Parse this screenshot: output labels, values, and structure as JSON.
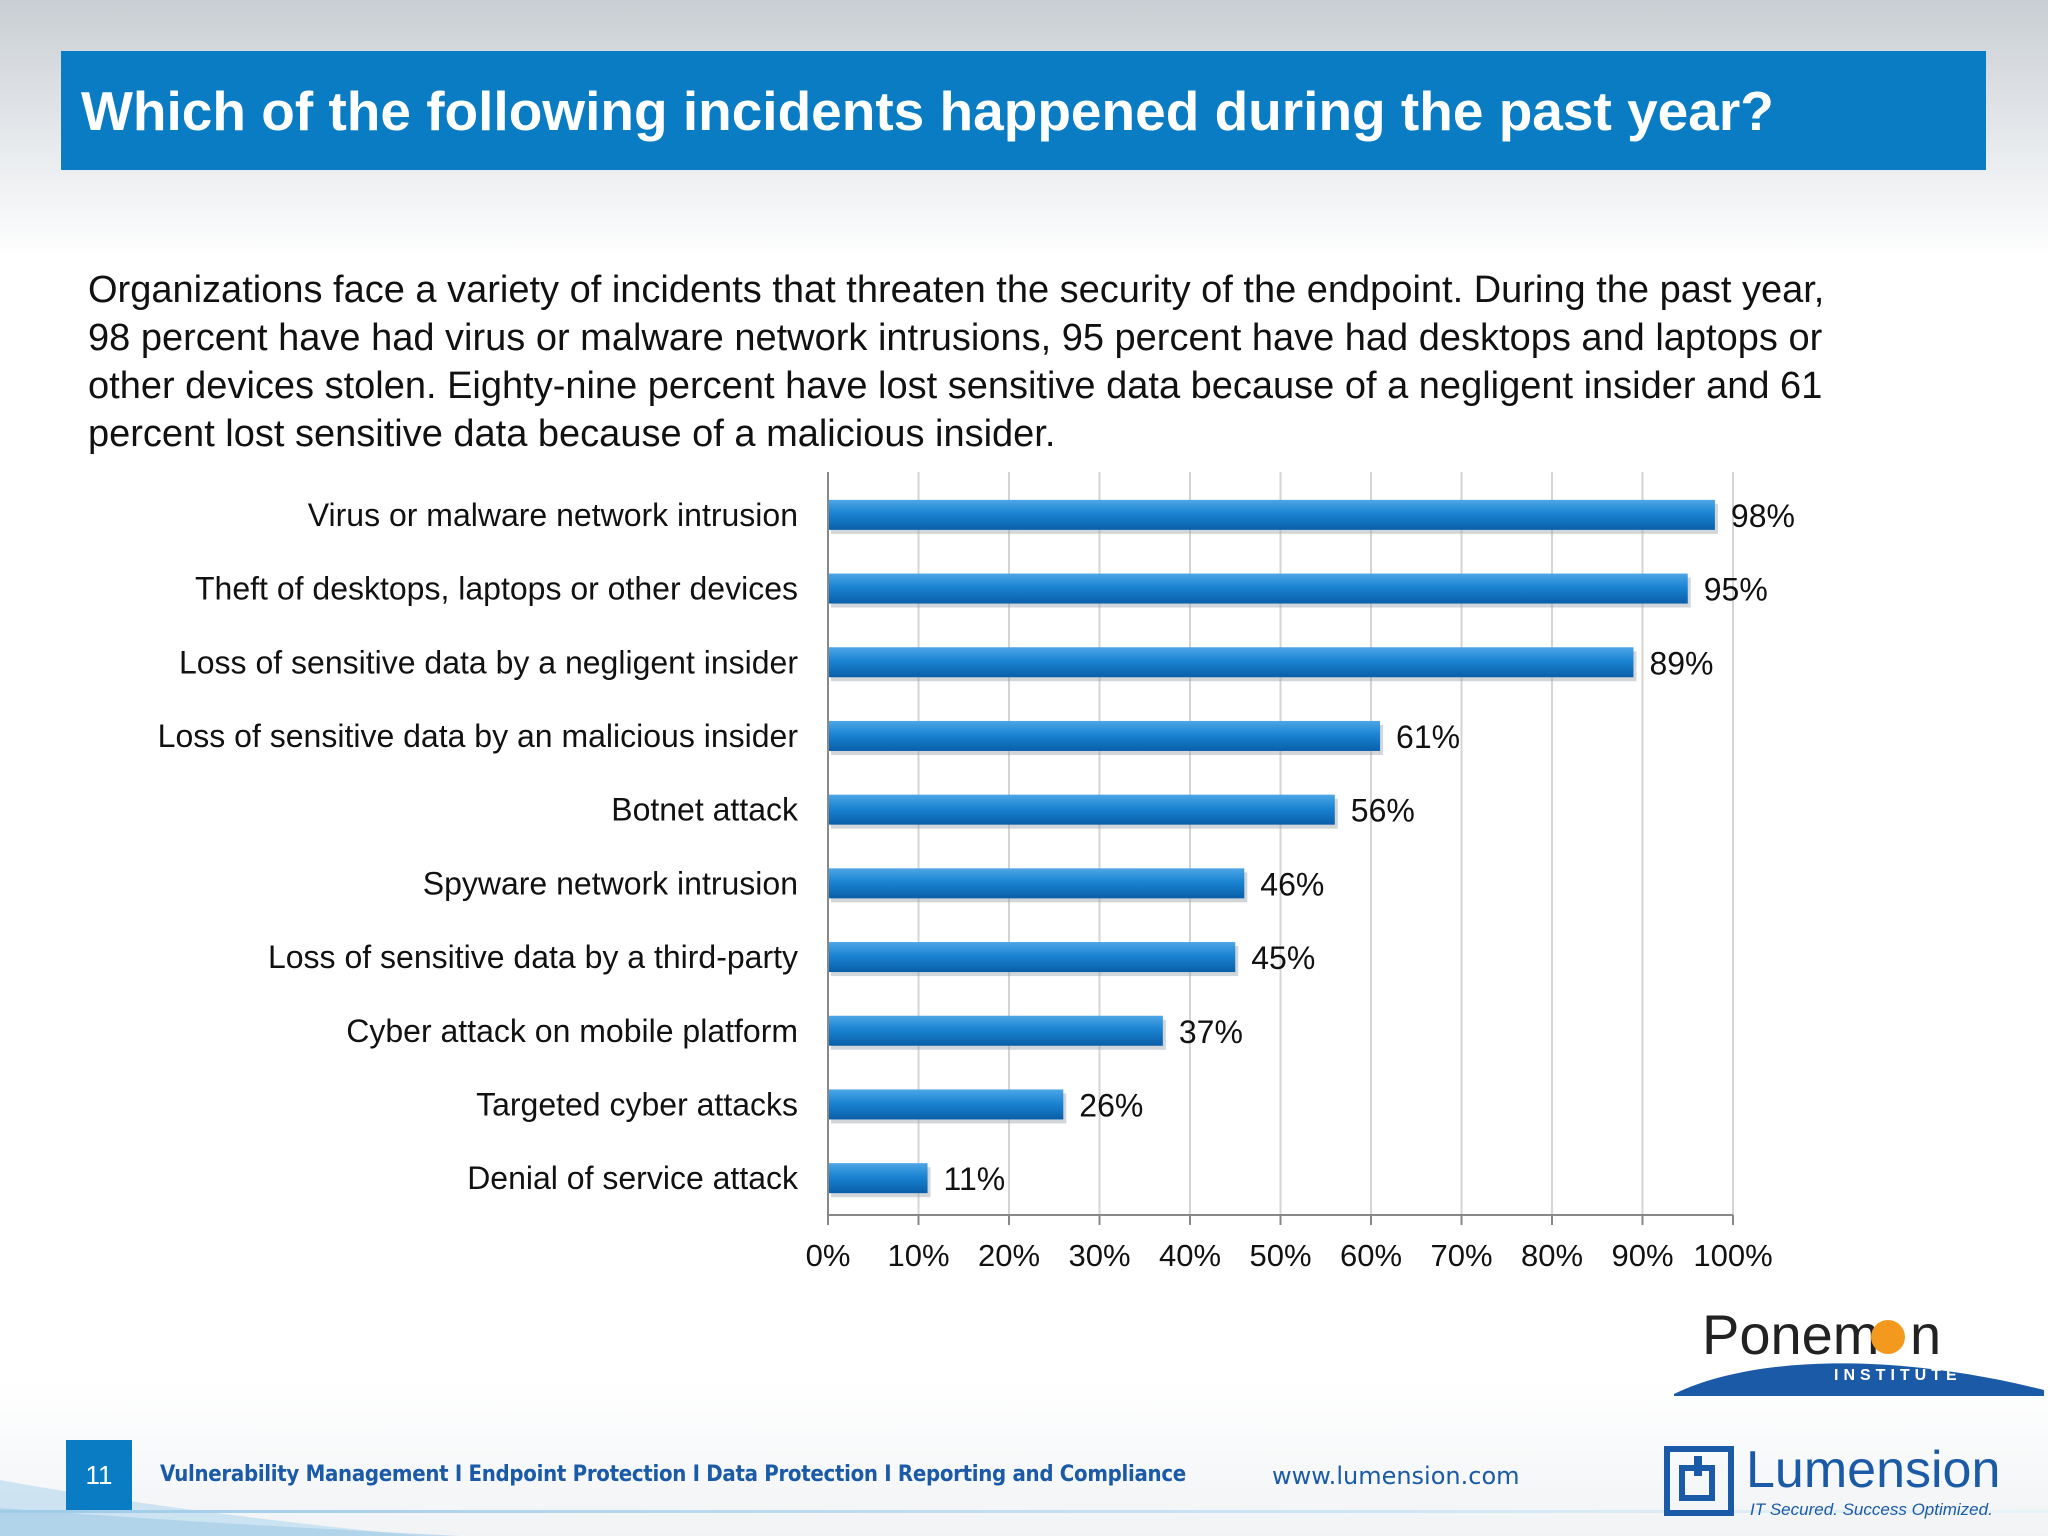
{
  "header": {
    "title": "Which of the following incidents happened during the past year?"
  },
  "description": "Organizations face a variety of incidents that threaten the security of the endpoint. During the past year, 98 percent have had virus or malware network intrusions, 95 percent have had desktops and laptops or other devices stolen. Eighty-nine percent have lost sensitive data because of a negligent insider and 61 percent lost sensitive data because of a malicious insider.",
  "chart_data": {
    "type": "bar",
    "orientation": "horizontal",
    "title": "Which of the following incidents happened during the past year?",
    "categories": [
      "Virus or malware network intrusion",
      "Theft of desktops, laptops or other devices",
      "Loss of sensitive data by a negligent insider",
      "Loss of sensitive data by an malicious insider",
      "Botnet attack",
      "Spyware network intrusion",
      "Loss of sensitive data by a third-party",
      "Cyber attack on mobile platform",
      "Targeted cyber attacks",
      "Denial of service attack"
    ],
    "values": [
      98,
      95,
      89,
      61,
      56,
      46,
      45,
      37,
      26,
      11
    ],
    "value_labels": [
      "98%",
      "95%",
      "89%",
      "61%",
      "56%",
      "46%",
      "45%",
      "37%",
      "26%",
      "11%"
    ],
    "xlim": [
      0,
      100
    ],
    "x_ticks": [
      0,
      10,
      20,
      30,
      40,
      50,
      60,
      70,
      80,
      90,
      100
    ],
    "x_tick_labels": [
      "0%",
      "10%",
      "20%",
      "30%",
      "40%",
      "50%",
      "60%",
      "70%",
      "80%",
      "90%",
      "100%"
    ],
    "xlabel": "",
    "ylabel": "",
    "grid": true,
    "bar_color": "#0a72c2"
  },
  "logos": {
    "ponemon_name": "Ponem",
    "ponemon_name_end": "n",
    "ponemon_sub": "INSTITUTE",
    "lumension_name": "Lumension",
    "lumension_tagline": "IT Secured. Success Optimized."
  },
  "footer": {
    "page_number": "11",
    "tagline": "Vulnerability Management I Endpoint Protection I Data Protection I Reporting and Compliance",
    "url": "www.lumension.com"
  },
  "colors": {
    "title_bar": "#0a7cc4",
    "accent_orange": "#f39a1e",
    "brand_blue": "#1a5aa6"
  }
}
